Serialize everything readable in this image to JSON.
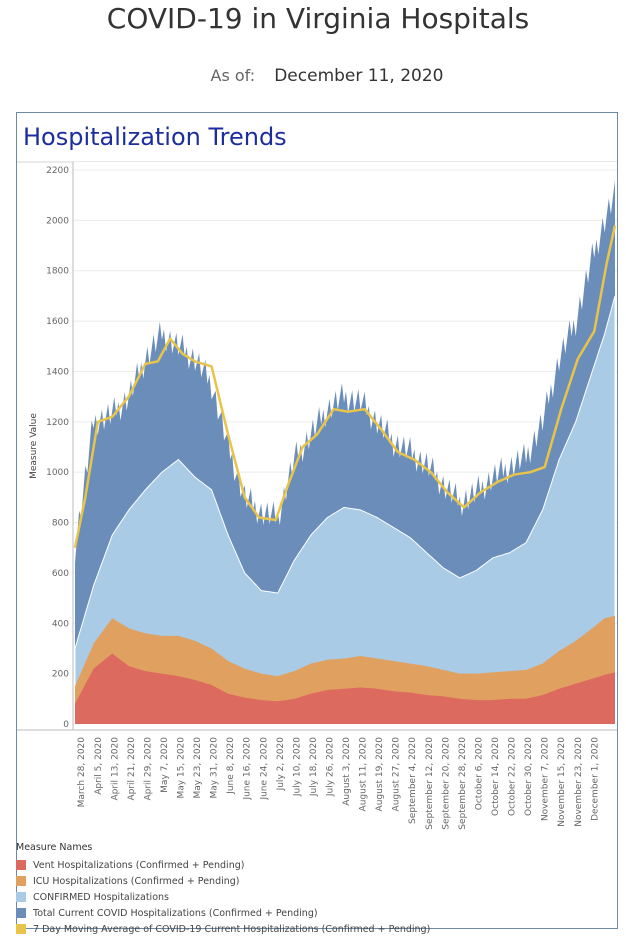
{
  "header": {
    "title": "COVID-19 in Virginia Hospitals",
    "as_of_label": "As of:",
    "as_of_date": "December 11, 2020"
  },
  "card": {
    "title": "Hospitalization Trends"
  },
  "chart_data": {
    "type": "area",
    "xlabel": "",
    "ylabel": "Measure Value",
    "ylim": [
      0,
      2200
    ],
    "yticks": [
      0,
      200,
      400,
      600,
      800,
      1000,
      1200,
      1400,
      1600,
      1800,
      2000,
      2200
    ],
    "grid": true,
    "legend_placement": "bottom",
    "x_start": "2020-03-25",
    "x_end": "2020-12-11",
    "x_tick_labels": [
      "March 28, 2020",
      "April 5, 2020",
      "April 13, 2020",
      "April 21, 2020",
      "April 29, 2020",
      "May 7, 2020",
      "May 15, 2020",
      "May 23, 2020",
      "May 31, 2020",
      "June 8, 2020",
      "June 16, 2020",
      "June 24, 2020",
      "July 2, 2020",
      "July 10, 2020",
      "July 18, 2020",
      "July 26, 2020",
      "August 3, 2020",
      "August 11, 2020",
      "August 19, 2020",
      "August 27, 2020",
      "September 4, 2020",
      "September 12, 2020",
      "September 20, 2020",
      "September 28, 2020",
      "October 6, 2020",
      "October 14, 2020",
      "October 22, 2020",
      "October 30, 2020",
      "November 7, 2020",
      "November 15, 2020",
      "November 23, 2020",
      "December 1, 2020"
    ],
    "x_tick_dates": [
      "2020-03-28",
      "2020-04-05",
      "2020-04-13",
      "2020-04-21",
      "2020-04-29",
      "2020-05-07",
      "2020-05-15",
      "2020-05-23",
      "2020-05-31",
      "2020-06-08",
      "2020-06-16",
      "2020-06-24",
      "2020-07-02",
      "2020-07-10",
      "2020-07-18",
      "2020-07-26",
      "2020-08-03",
      "2020-08-11",
      "2020-08-19",
      "2020-08-27",
      "2020-09-04",
      "2020-09-12",
      "2020-09-20",
      "2020-09-28",
      "2020-10-06",
      "2020-10-14",
      "2020-10-22",
      "2020-10-30",
      "2020-11-07",
      "2020-11-15",
      "2020-11-23",
      "2020-12-01"
    ],
    "series": [
      {
        "name": "Total Current COVID Hospitalizations (Confirmed + Pending)",
        "color": "#6b8dba",
        "kind": "area",
        "x": [
          "2020-03-25",
          "2020-04-03",
          "2020-04-12",
          "2020-04-20",
          "2020-04-28",
          "2020-05-06",
          "2020-05-14",
          "2020-05-22",
          "2020-05-30",
          "2020-06-07",
          "2020-06-15",
          "2020-06-23",
          "2020-07-01",
          "2020-07-09",
          "2020-07-17",
          "2020-07-25",
          "2020-08-02",
          "2020-08-10",
          "2020-08-18",
          "2020-08-26",
          "2020-09-03",
          "2020-09-11",
          "2020-09-19",
          "2020-09-27",
          "2020-10-05",
          "2020-10-13",
          "2020-10-21",
          "2020-10-29",
          "2020-11-06",
          "2020-11-14",
          "2020-11-22",
          "2020-11-30",
          "2020-12-06",
          "2020-12-11"
        ],
        "values": [
          700,
          1200,
          1230,
          1300,
          1450,
          1550,
          1500,
          1450,
          1350,
          1100,
          900,
          840,
          820,
          1050,
          1150,
          1250,
          1300,
          1280,
          1200,
          1120,
          1080,
          1030,
          950,
          880,
          920,
          980,
          1020,
          1060,
          1200,
          1450,
          1600,
          1850,
          2000,
          2100
        ]
      },
      {
        "name": "CONFIRMED Hospitalizations",
        "color": "#a9cbe6",
        "kind": "area",
        "x": [
          "2020-03-25",
          "2020-04-03",
          "2020-04-12",
          "2020-04-20",
          "2020-04-28",
          "2020-05-06",
          "2020-05-14",
          "2020-05-22",
          "2020-05-30",
          "2020-06-07",
          "2020-06-15",
          "2020-06-23",
          "2020-07-01",
          "2020-07-09",
          "2020-07-17",
          "2020-07-25",
          "2020-08-02",
          "2020-08-10",
          "2020-08-18",
          "2020-08-26",
          "2020-09-03",
          "2020-09-11",
          "2020-09-19",
          "2020-09-27",
          "2020-10-05",
          "2020-10-13",
          "2020-10-21",
          "2020-10-29",
          "2020-11-06",
          "2020-11-14",
          "2020-11-22",
          "2020-11-30",
          "2020-12-06",
          "2020-12-11"
        ],
        "values": [
          300,
          550,
          750,
          850,
          930,
          1000,
          1050,
          980,
          930,
          750,
          600,
          530,
          520,
          650,
          750,
          820,
          860,
          850,
          820,
          780,
          740,
          680,
          620,
          580,
          610,
          660,
          680,
          720,
          850,
          1050,
          1200,
          1400,
          1550,
          1700
        ]
      },
      {
        "name": "ICU Hospitalizations (Confirmed + Pending)",
        "color": "#e0a060",
        "kind": "area",
        "x": [
          "2020-03-25",
          "2020-04-03",
          "2020-04-12",
          "2020-04-20",
          "2020-04-28",
          "2020-05-06",
          "2020-05-14",
          "2020-05-22",
          "2020-05-30",
          "2020-06-07",
          "2020-06-15",
          "2020-06-23",
          "2020-07-01",
          "2020-07-09",
          "2020-07-17",
          "2020-07-25",
          "2020-08-02",
          "2020-08-10",
          "2020-08-18",
          "2020-08-26",
          "2020-09-03",
          "2020-09-11",
          "2020-09-19",
          "2020-09-27",
          "2020-10-05",
          "2020-10-13",
          "2020-10-21",
          "2020-10-29",
          "2020-11-06",
          "2020-11-14",
          "2020-11-22",
          "2020-11-30",
          "2020-12-06",
          "2020-12-11"
        ],
        "values": [
          150,
          320,
          420,
          380,
          360,
          350,
          350,
          330,
          300,
          250,
          220,
          200,
          190,
          210,
          240,
          255,
          260,
          270,
          260,
          250,
          240,
          230,
          215,
          200,
          200,
          205,
          210,
          215,
          240,
          290,
          330,
          380,
          420,
          430
        ]
      },
      {
        "name": "Vent Hospitalizations (Confirmed + Pending)",
        "color": "#dd6a5e",
        "kind": "area",
        "x": [
          "2020-03-25",
          "2020-04-03",
          "2020-04-12",
          "2020-04-20",
          "2020-04-28",
          "2020-05-06",
          "2020-05-14",
          "2020-05-22",
          "2020-05-30",
          "2020-06-07",
          "2020-06-15",
          "2020-06-23",
          "2020-07-01",
          "2020-07-09",
          "2020-07-17",
          "2020-07-25",
          "2020-08-02",
          "2020-08-10",
          "2020-08-18",
          "2020-08-26",
          "2020-09-03",
          "2020-09-11",
          "2020-09-19",
          "2020-09-27",
          "2020-10-05",
          "2020-10-13",
          "2020-10-21",
          "2020-10-29",
          "2020-11-06",
          "2020-11-14",
          "2020-11-22",
          "2020-11-30",
          "2020-12-06",
          "2020-12-11"
        ],
        "values": [
          80,
          220,
          280,
          230,
          210,
          200,
          190,
          175,
          155,
          120,
          105,
          95,
          90,
          100,
          120,
          135,
          140,
          145,
          140,
          130,
          125,
          115,
          110,
          100,
          95,
          95,
          100,
          100,
          115,
          140,
          160,
          180,
          195,
          205
        ]
      },
      {
        "name": "7 Day Moving Average of COVID-19 Current Hospitalizations (Confirmed + Pending)",
        "color": "#e8c44a",
        "kind": "line",
        "x": [
          "2020-03-25",
          "2020-03-30",
          "2020-04-05",
          "2020-04-12",
          "2020-04-20",
          "2020-04-28",
          "2020-05-04",
          "2020-05-10",
          "2020-05-16",
          "2020-05-22",
          "2020-05-30",
          "2020-06-07",
          "2020-06-15",
          "2020-06-22",
          "2020-06-30",
          "2020-07-06",
          "2020-07-13",
          "2020-07-20",
          "2020-07-28",
          "2020-08-04",
          "2020-08-12",
          "2020-08-20",
          "2020-08-28",
          "2020-09-05",
          "2020-09-13",
          "2020-09-21",
          "2020-09-29",
          "2020-10-07",
          "2020-10-15",
          "2020-10-23",
          "2020-10-31",
          "2020-11-07",
          "2020-11-15",
          "2020-11-23",
          "2020-12-01",
          "2020-12-07",
          "2020-12-11"
        ],
        "values": [
          700,
          900,
          1200,
          1220,
          1300,
          1430,
          1440,
          1530,
          1470,
          1440,
          1420,
          1150,
          900,
          820,
          810,
          950,
          1100,
          1150,
          1250,
          1240,
          1250,
          1170,
          1080,
          1050,
          1000,
          920,
          860,
          920,
          960,
          990,
          1000,
          1020,
          1250,
          1450,
          1560,
          1830,
          1980
        ]
      }
    ]
  },
  "legend": {
    "title": "Measure Names",
    "items": [
      {
        "label": "Vent Hospitalizations (Confirmed + Pending)",
        "color": "#dd6a5e"
      },
      {
        "label": "ICU Hospitalizations (Confirmed + Pending)",
        "color": "#e0a060"
      },
      {
        "label": "CONFIRMED Hospitalizations",
        "color": "#a9cbe6"
      },
      {
        "label": "Total Current COVID Hospitalizations (Confirmed + Pending)",
        "color": "#6b8dba"
      },
      {
        "label": "7 Day Moving Average of COVID-19 Current Hospitalizations (Confirmed + Pending)",
        "color": "#e8c44a"
      }
    ]
  }
}
